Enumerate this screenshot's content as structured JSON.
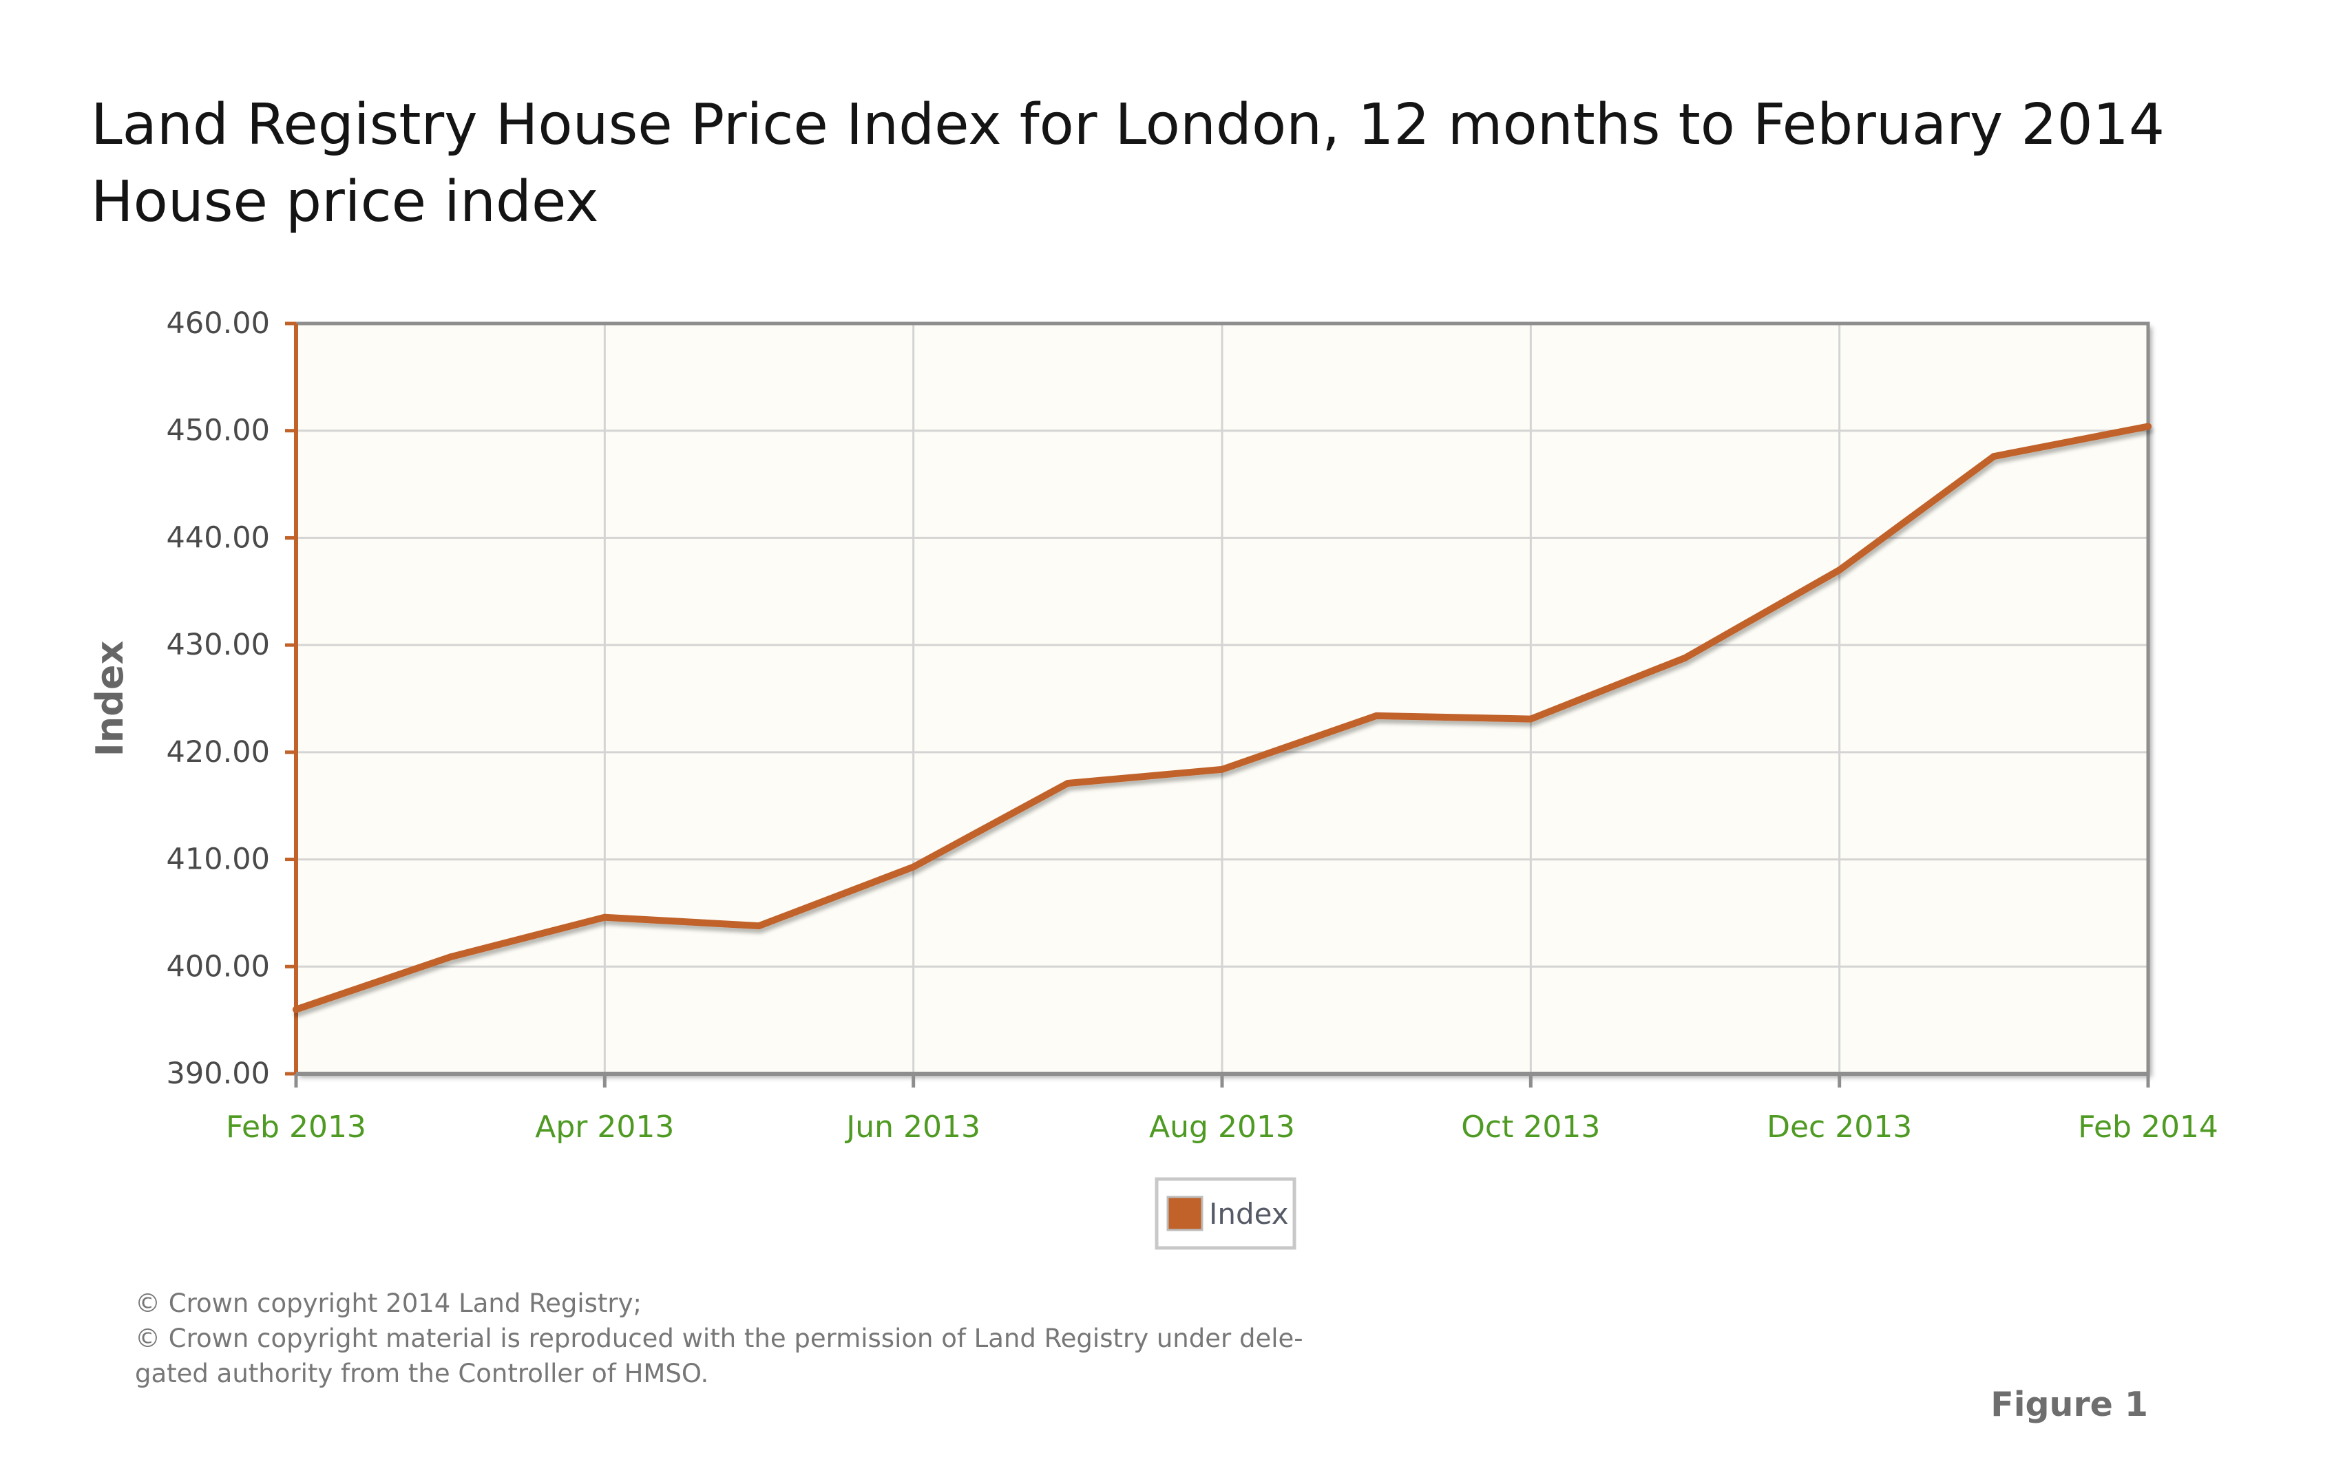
{
  "page": {
    "title": "Land Registry House Price Index for London, 12 months to February 2014",
    "subtitle": "House price index",
    "figure_label": "Figure 1",
    "footnote_lines": [
      "© Crown copyright 2014 Land Registry;",
      "© Crown copyright material is reproduced with the permission of Land Registry under dele-",
      "gated authority from the Controller of HMSO."
    ]
  },
  "chart_data": {
    "type": "line",
    "title": "Land Registry House Price Index for London, 12 months to February 2014",
    "subtitle": "House price index",
    "xlabel": "",
    "ylabel": "Index",
    "x": [
      "Feb 2013",
      "Mar 2013",
      "Apr 2013",
      "May 2013",
      "Jun 2013",
      "Jul 2013",
      "Aug 2013",
      "Sep 2013",
      "Oct 2013",
      "Nov 2013",
      "Dec 2013",
      "Jan 2014",
      "Feb 2014"
    ],
    "x_tick_labels": [
      "Feb 2013",
      "Apr 2013",
      "Jun 2013",
      "Aug 2013",
      "Oct 2013",
      "Dec 2013",
      "Feb 2014"
    ],
    "y_tick_labels": [
      "460.00",
      "450.00",
      "440.00",
      "430.00",
      "420.00",
      "410.00",
      "400.00",
      "390.00"
    ],
    "ylim": [
      390,
      460
    ],
    "grid": true,
    "legend_position": "bottom-center",
    "series": [
      {
        "name": "Index",
        "color": "#c0622a",
        "values": [
          396.0,
          400.9,
          404.6,
          403.8,
          409.3,
          417.1,
          418.4,
          423.4,
          423.1,
          428.8,
          437.0,
          447.6,
          450.4
        ]
      }
    ],
    "colors": {
      "plot_background": "#fdfcf6",
      "grid": "#d4d4d4",
      "frame": "#8e8e8e",
      "y_axis": "#c0622a",
      "x_tick_text": "#4e9a22",
      "y_tick_text": "#4a4a4a",
      "ylabel_text": "#666666"
    }
  }
}
